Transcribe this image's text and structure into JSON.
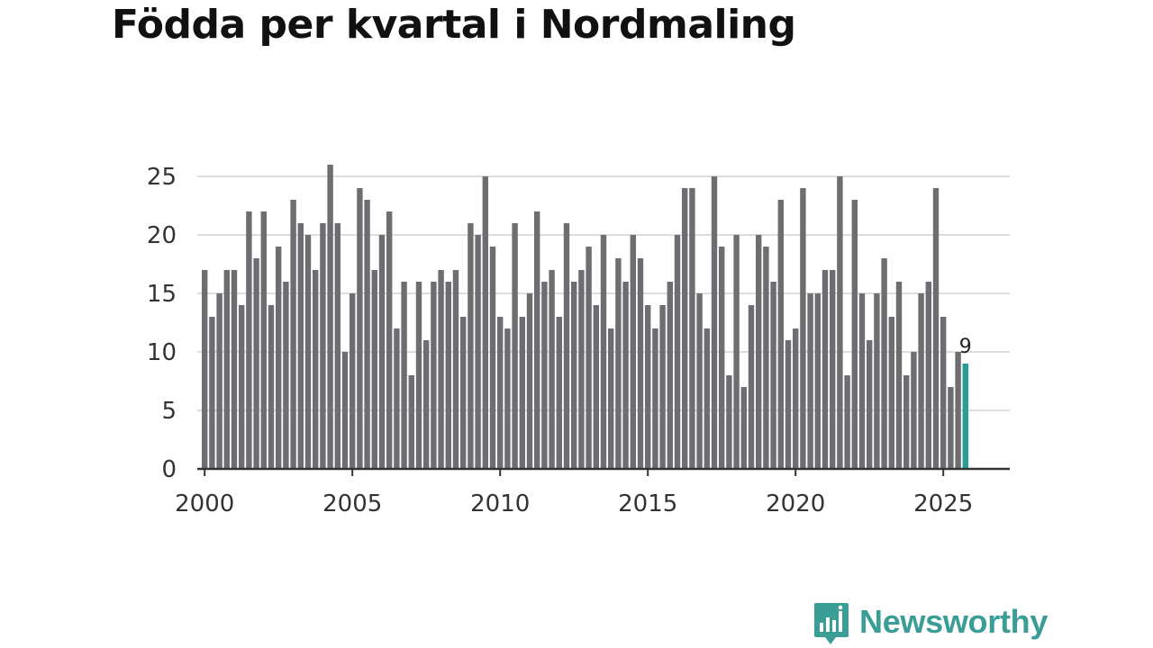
{
  "title": "Födda per kvartal i Nordmaling",
  "brand": {
    "name": "Newsworthy",
    "color": "#3a9d96",
    "icon": "bar-chart-speech-bubble-icon"
  },
  "colors": {
    "bar": "#6e6d72",
    "highlight": "#26a096",
    "grid": "#dddddd",
    "axis": "#333333"
  },
  "chart_data": {
    "type": "bar",
    "title": "Födda per kvartal i Nordmaling",
    "xlabel": "",
    "ylabel": "",
    "xlim": [
      1999.75,
      2027.25
    ],
    "ylim": [
      0,
      27
    ],
    "yticks": [
      0,
      5,
      10,
      15,
      20,
      25
    ],
    "xticks": [
      2000,
      2005,
      2010,
      2015,
      2020,
      2025
    ],
    "grid": true,
    "start_year": 2000,
    "period": "quarter",
    "values": [
      17,
      13,
      15,
      17,
      17,
      14,
      22,
      18,
      22,
      14,
      19,
      16,
      23,
      21,
      20,
      17,
      21,
      26,
      21,
      10,
      15,
      24,
      23,
      17,
      20,
      22,
      12,
      16,
      8,
      16,
      11,
      16,
      17,
      16,
      17,
      13,
      21,
      20,
      25,
      19,
      13,
      12,
      21,
      13,
      15,
      22,
      16,
      17,
      13,
      21,
      16,
      17,
      19,
      14,
      20,
      12,
      18,
      16,
      20,
      18,
      14,
      12,
      14,
      16,
      20,
      24,
      24,
      15,
      12,
      25,
      19,
      8,
      20,
      7,
      14,
      20,
      19,
      16,
      23,
      11,
      12,
      24,
      15,
      15,
      17,
      17,
      25,
      8,
      23,
      15,
      11,
      15,
      18,
      13,
      16,
      8,
      10,
      15,
      16,
      24,
      13,
      7,
      10,
      9
    ],
    "highlight": {
      "index": 103,
      "label": "9"
    }
  }
}
